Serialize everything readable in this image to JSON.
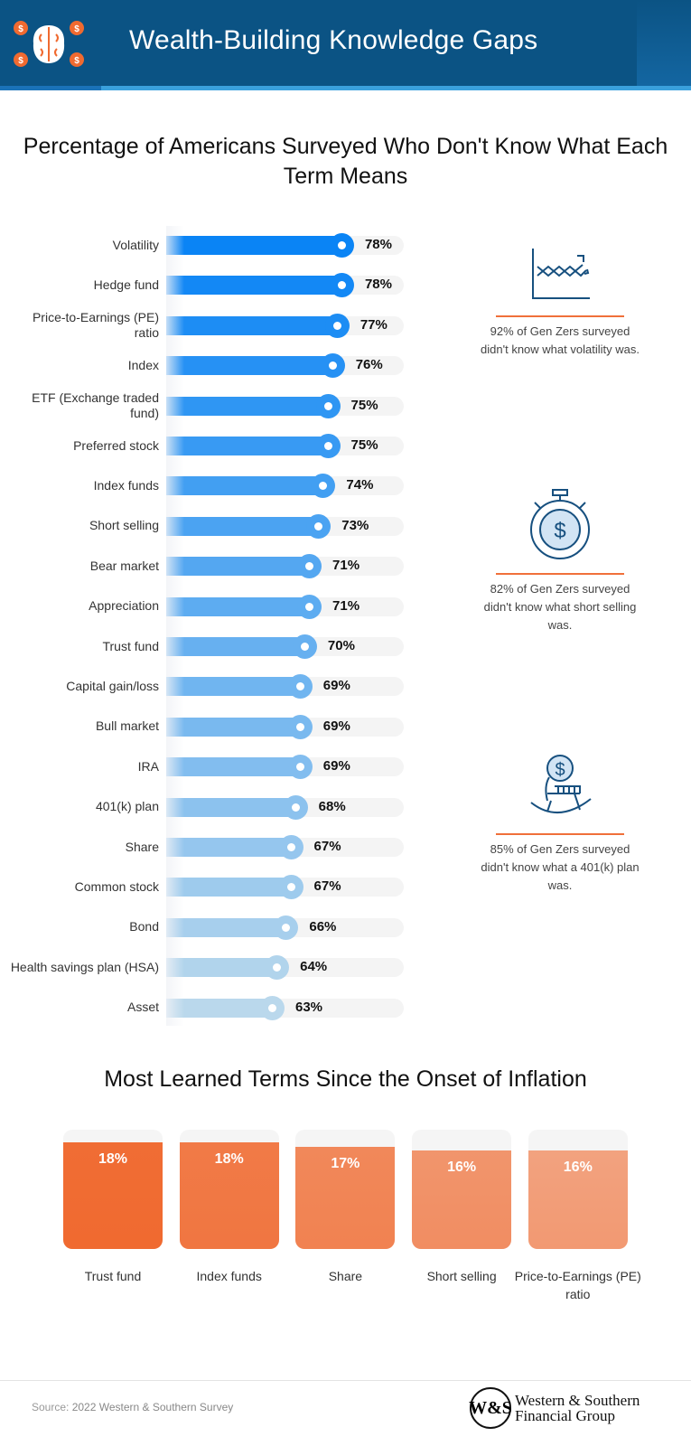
{
  "header": {
    "title": "Wealth-Building Knowledge Gaps",
    "icon": "brain-dollar-icon",
    "color": "#0b5384"
  },
  "chart_data": [
    {
      "type": "bar",
      "orientation": "horizontal",
      "title": "Percentage of Americans Surveyed Who Don't Know What Each Term Means",
      "categories": [
        "Volatility",
        "Hedge fund",
        "Price-to-Earnings (PE) ratio",
        "Index",
        "ETF (Exchange traded fund)",
        "Preferred stock",
        "Index funds",
        "Short selling",
        "Bear market",
        "Appreciation",
        "Trust fund",
        "Capital gain/loss",
        "Bull market",
        "IRA",
        "401(k) plan",
        "Share",
        "Common stock",
        "Bond",
        "Health savings plan (HSA)",
        "Asset"
      ],
      "values": [
        78,
        78,
        77,
        76,
        75,
        75,
        74,
        73,
        71,
        71,
        70,
        69,
        69,
        69,
        68,
        67,
        67,
        66,
        64,
        63
      ],
      "labels": [
        "78%",
        "78%",
        "77%",
        "76%",
        "75%",
        "75%",
        "74%",
        "73%",
        "71%",
        "71%",
        "70%",
        "69%",
        "69%",
        "69%",
        "68%",
        "67%",
        "67%",
        "66%",
        "64%",
        "63%"
      ],
      "colors": {
        "high": "#0a84f5",
        "low": "#bad8ec"
      }
    },
    {
      "type": "bar",
      "orientation": "vertical",
      "title": "Most Learned Terms Since the Onset of Inflation",
      "categories": [
        "Trust fund",
        "Index funds",
        "Share",
        "Short selling",
        "Price-to-Earnings (PE) ratio"
      ],
      "values": [
        18,
        18,
        17,
        16,
        16
      ],
      "labels": [
        "18%",
        "18%",
        "17%",
        "16%",
        "16%"
      ],
      "colors": {
        "high": "#f06a30",
        "low": "#f2a583"
      }
    }
  ],
  "notes": [
    {
      "icon": "line-chart-icon",
      "text": "92% of Gen Zers surveyed didn't know what volatility was."
    },
    {
      "icon": "stopwatch-dollar-icon",
      "text": "82% of Gen Zers surveyed didn't know what short selling was."
    },
    {
      "icon": "rocking-chair-dollar-icon",
      "text": "85% of Gen Zers surveyed didn't know what a 401(k) plan was."
    }
  ],
  "footer": {
    "source_label": "Source:",
    "source": "2022 Western & Southern Survey",
    "brand_line1": "Western & Southern",
    "brand_line2": "Financial Group",
    "brand_monogram": "W&S"
  }
}
